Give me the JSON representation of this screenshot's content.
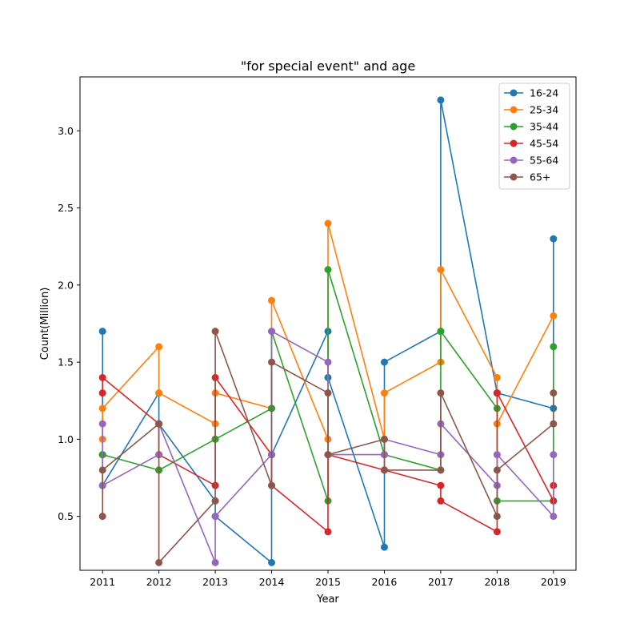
{
  "chart_data": {
    "type": "line",
    "title": "\"for special event\" and age",
    "xlabel": "Year",
    "ylabel": "Count(Million)",
    "x": [
      "2011",
      "2012",
      "2013",
      "2014",
      "2015",
      "2016",
      "2017",
      "2018",
      "2019"
    ],
    "y_ticks": [
      "0.5",
      "1.0",
      "1.5",
      "2.0",
      "2.5",
      "3.0"
    ],
    "ylim": [
      0.15,
      3.35
    ],
    "grid": false,
    "legend_position": "top-right",
    "series": [
      {
        "name": "16-24",
        "color": "#1f77b4",
        "points": [
          [
            2011,
            1.7
          ],
          [
            2011,
            0.9
          ],
          [
            2011,
            0.7
          ],
          [
            2012,
            1.3
          ],
          [
            2012,
            1.1
          ],
          [
            2013,
            0.6
          ],
          [
            2013,
            0.5
          ],
          [
            2014,
            0.2
          ],
          [
            2014,
            0.9
          ],
          [
            2015,
            1.7
          ],
          [
            2015,
            1.4
          ],
          [
            2016,
            0.3
          ],
          [
            2016,
            1.5
          ],
          [
            2017,
            1.7
          ],
          [
            2017,
            3.2
          ],
          [
            2018,
            1.3
          ],
          [
            2018,
            1.3
          ],
          [
            2019,
            1.2
          ],
          [
            2019,
            2.3
          ]
        ]
      },
      {
        "name": "25-34",
        "color": "#ff7f0e",
        "points": [
          [
            2011,
            1.0
          ],
          [
            2011,
            1.2
          ],
          [
            2012,
            1.6
          ],
          [
            2012,
            1.3
          ],
          [
            2013,
            1.1
          ],
          [
            2013,
            1.3
          ],
          [
            2014,
            1.2
          ],
          [
            2014,
            1.9
          ],
          [
            2015,
            1.0
          ],
          [
            2015,
            2.4
          ],
          [
            2016,
            1.0
          ],
          [
            2016,
            1.3
          ],
          [
            2017,
            1.5
          ],
          [
            2017,
            2.1
          ],
          [
            2018,
            1.4
          ],
          [
            2018,
            1.1
          ],
          [
            2019,
            1.8
          ]
        ]
      },
      {
        "name": "35-44",
        "color": "#2ca02c",
        "points": [
          [
            2011,
            0.9
          ],
          [
            2011,
            0.9
          ],
          [
            2012,
            0.8
          ],
          [
            2012,
            0.8
          ],
          [
            2013,
            1.0
          ],
          [
            2013,
            1.0
          ],
          [
            2014,
            1.2
          ],
          [
            2014,
            1.7
          ],
          [
            2015,
            0.6
          ],
          [
            2015,
            2.1
          ],
          [
            2016,
            0.9
          ],
          [
            2016,
            0.9
          ],
          [
            2017,
            0.8
          ],
          [
            2017,
            1.7
          ],
          [
            2018,
            1.2
          ],
          [
            2018,
            0.6
          ],
          [
            2019,
            0.6
          ],
          [
            2019,
            1.6
          ]
        ]
      },
      {
        "name": "45-54",
        "color": "#d62728",
        "points": [
          [
            2011,
            1.3
          ],
          [
            2011,
            1.4
          ],
          [
            2012,
            1.1
          ],
          [
            2012,
            0.9
          ],
          [
            2013,
            0.7
          ],
          [
            2013,
            1.4
          ],
          [
            2014,
            0.9
          ],
          [
            2014,
            0.7
          ],
          [
            2015,
            0.4
          ],
          [
            2015,
            0.9
          ],
          [
            2016,
            0.8
          ],
          [
            2016,
            0.8
          ],
          [
            2017,
            0.7
          ],
          [
            2017,
            0.6
          ],
          [
            2018,
            0.4
          ],
          [
            2018,
            1.3
          ],
          [
            2019,
            0.6
          ],
          [
            2019,
            0.7
          ]
        ]
      },
      {
        "name": "55-64",
        "color": "#9467bd",
        "points": [
          [
            2011,
            1.1
          ],
          [
            2011,
            0.7
          ],
          [
            2012,
            0.9
          ],
          [
            2012,
            1.1
          ],
          [
            2013,
            0.2
          ],
          [
            2013,
            0.5
          ],
          [
            2014,
            0.9
          ],
          [
            2014,
            1.7
          ],
          [
            2015,
            1.5
          ],
          [
            2015,
            0.9
          ],
          [
            2016,
            0.9
          ],
          [
            2016,
            1.0
          ],
          [
            2017,
            0.9
          ],
          [
            2017,
            1.1
          ],
          [
            2018,
            0.7
          ],
          [
            2018,
            0.9
          ],
          [
            2019,
            0.5
          ],
          [
            2019,
            0.9
          ]
        ]
      },
      {
        "name": "65+",
        "color": "#8c564b",
        "points": [
          [
            2011,
            0.5
          ],
          [
            2011,
            0.8
          ],
          [
            2012,
            1.1
          ],
          [
            2012,
            0.2
          ],
          [
            2013,
            0.6
          ],
          [
            2013,
            1.7
          ],
          [
            2014,
            0.7
          ],
          [
            2014,
            1.5
          ],
          [
            2015,
            1.3
          ],
          [
            2015,
            0.9
          ],
          [
            2016,
            1.0
          ],
          [
            2016,
            0.8
          ],
          [
            2017,
            0.8
          ],
          [
            2017,
            1.3
          ],
          [
            2018,
            0.5
          ],
          [
            2018,
            0.8
          ],
          [
            2019,
            1.1
          ],
          [
            2019,
            1.3
          ]
        ]
      }
    ]
  }
}
